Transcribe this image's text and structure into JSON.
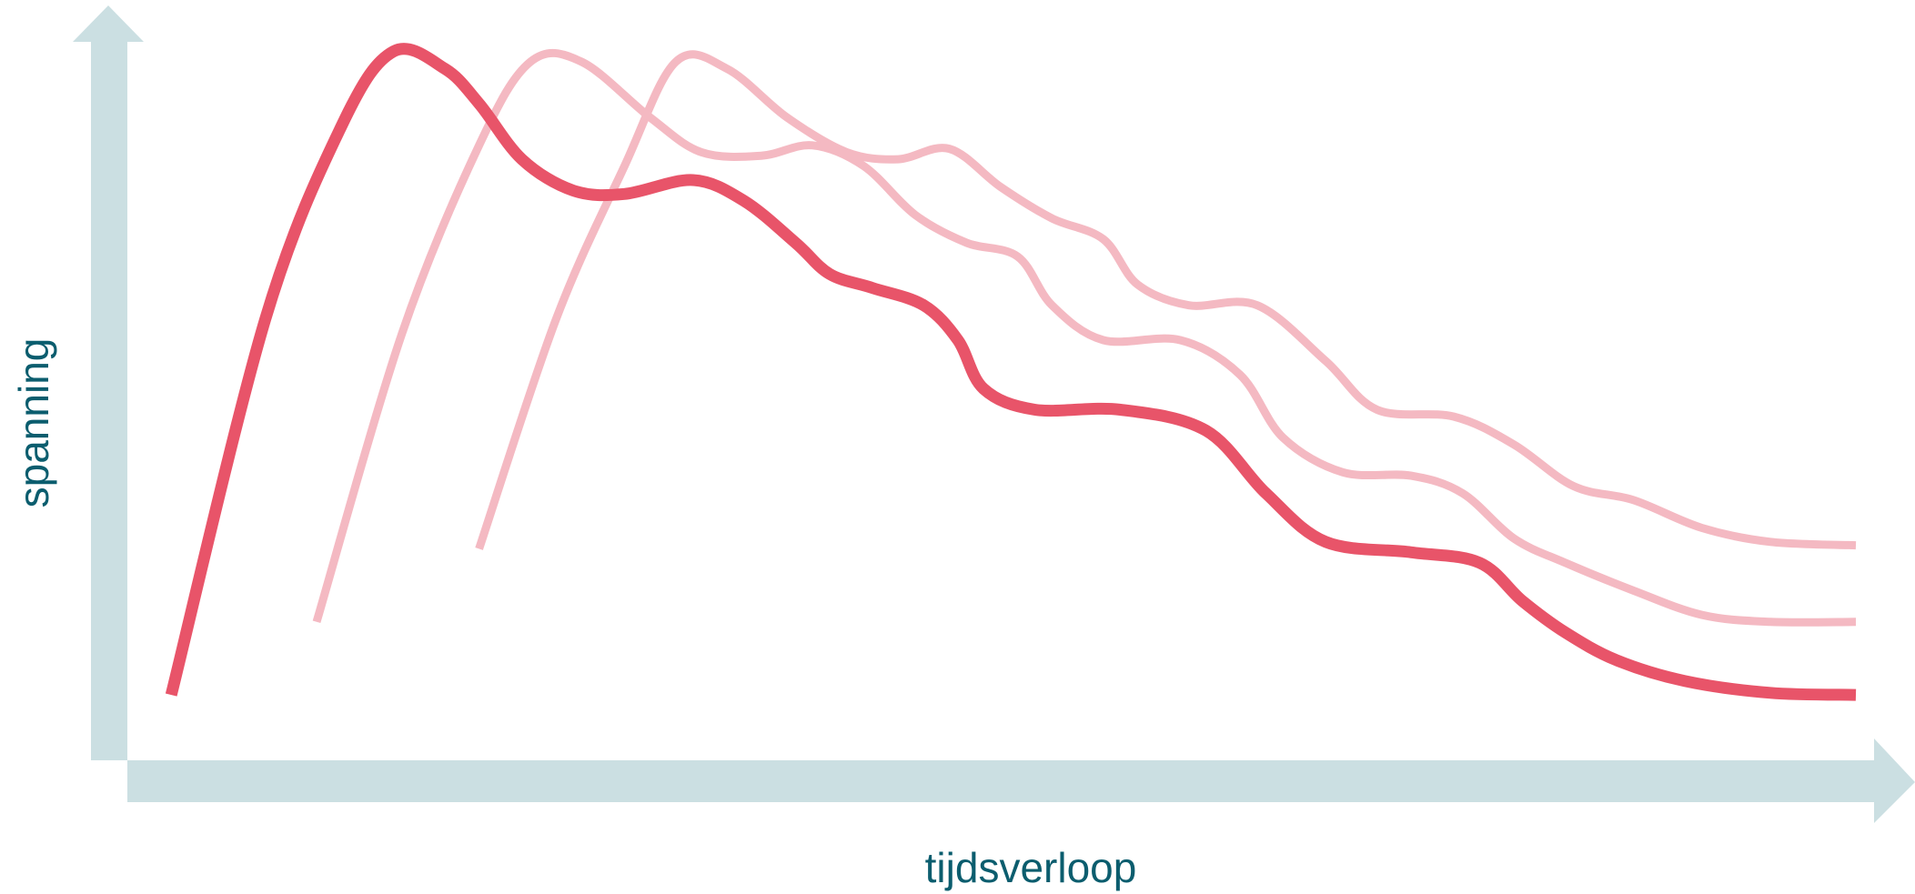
{
  "chart_data": {
    "type": "line",
    "title": "",
    "xlabel": "tijdsverloop",
    "ylabel": "spanning",
    "xlim": [
      0,
      100
    ],
    "ylim": [
      0,
      100
    ],
    "grid": false,
    "legend": "none",
    "colors": {
      "axis": "#cbdfe2",
      "primary": "#e85469",
      "faded": "#f4b9c2",
      "label": "#0b5d6e"
    },
    "series": [
      {
        "color": "#e85469",
        "points": [
          [
            1.5,
            6
          ],
          [
            7,
            60
          ],
          [
            11.5,
            88
          ],
          [
            14.5,
            98.5
          ],
          [
            17.5,
            96
          ],
          [
            19.5,
            91
          ],
          [
            22,
            83
          ],
          [
            25,
            78.5
          ],
          [
            28,
            78
          ],
          [
            32,
            80
          ],
          [
            35,
            77
          ],
          [
            38,
            71
          ],
          [
            40,
            66.5
          ],
          [
            42.5,
            64.5
          ],
          [
            45.5,
            62
          ],
          [
            47.5,
            57
          ],
          [
            49,
            50
          ],
          [
            52,
            47
          ],
          [
            57,
            47
          ],
          [
            62,
            44
          ],
          [
            65.5,
            35
          ],
          [
            69,
            28
          ],
          [
            74,
            26.5
          ],
          [
            78,
            25
          ],
          [
            80.5,
            19.5
          ],
          [
            83,
            15
          ],
          [
            86,
            11
          ],
          [
            90,
            8
          ],
          [
            95,
            6.3
          ],
          [
            100,
            6
          ]
        ]
      },
      {
        "color": "#f4b9c2",
        "points": [
          [
            10,
            16.5
          ],
          [
            15,
            58
          ],
          [
            19.5,
            85
          ],
          [
            22.5,
            97
          ],
          [
            25.5,
            97
          ],
          [
            29.5,
            89
          ],
          [
            32.5,
            84
          ],
          [
            36,
            83.5
          ],
          [
            39,
            85
          ],
          [
            42,
            82
          ],
          [
            45,
            75
          ],
          [
            48,
            71
          ],
          [
            51,
            69
          ],
          [
            53,
            62
          ],
          [
            56,
            57
          ],
          [
            60.5,
            57
          ],
          [
            64,
            52
          ],
          [
            66.5,
            43
          ],
          [
            70,
            38
          ],
          [
            74,
            37.5
          ],
          [
            77,
            35
          ],
          [
            80,
            28.5
          ],
          [
            83,
            25
          ],
          [
            87,
            21
          ],
          [
            91,
            17.5
          ],
          [
            95,
            16.5
          ],
          [
            100,
            16.5
          ]
        ]
      },
      {
        "color": "#f4b9c2",
        "points": [
          [
            19.5,
            27
          ],
          [
            24,
            60
          ],
          [
            28,
            82
          ],
          [
            31,
            97
          ],
          [
            34,
            96
          ],
          [
            37.5,
            89
          ],
          [
            41,
            84
          ],
          [
            44,
            83
          ],
          [
            47,
            84.5
          ],
          [
            50,
            79
          ],
          [
            53,
            74.5
          ],
          [
            56,
            71.5
          ],
          [
            58,
            65
          ],
          [
            61,
            62
          ],
          [
            65,
            62
          ],
          [
            69,
            54
          ],
          [
            72,
            47
          ],
          [
            76.5,
            46
          ],
          [
            80,
            42
          ],
          [
            83.5,
            36
          ],
          [
            87,
            34
          ],
          [
            91,
            30
          ],
          [
            95,
            28
          ],
          [
            100,
            27.5
          ]
        ]
      }
    ]
  }
}
